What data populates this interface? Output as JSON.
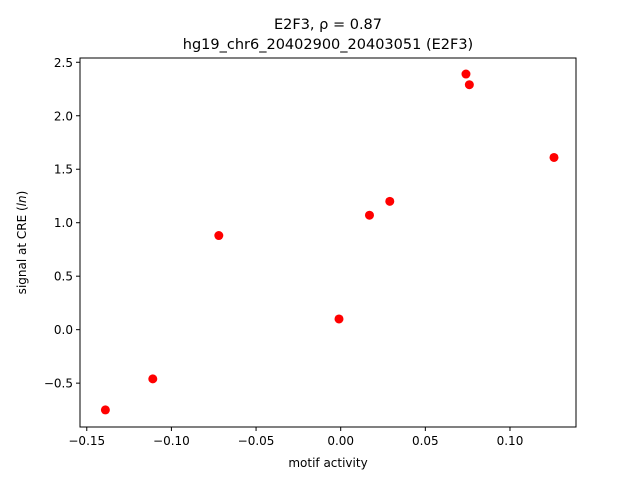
{
  "chart_data": {
    "type": "scatter",
    "title_line1": "E2F3, ρ = 0.87",
    "title_line2": "hg19_chr6_20402900_20403051 (E2F3)",
    "xlabel": "motif activity",
    "ylabel": "signal at CRE (",
    "ylabel_italic": "ln",
    "ylabel_suffix": ")",
    "xlim": [
      -0.154,
      0.139
    ],
    "ylim": [
      -0.91,
      2.54
    ],
    "xticks": [
      {
        "value": -0.15,
        "label": "−0.15"
      },
      {
        "value": -0.1,
        "label": "−0.10"
      },
      {
        "value": -0.05,
        "label": "−0.05"
      },
      {
        "value": 0.0,
        "label": "0.00"
      },
      {
        "value": 0.05,
        "label": "0.05"
      },
      {
        "value": 0.1,
        "label": "0.10"
      }
    ],
    "yticks": [
      {
        "value": -0.5,
        "label": "−0.5"
      },
      {
        "value": 0.0,
        "label": "0.0"
      },
      {
        "value": 0.5,
        "label": "0.5"
      },
      {
        "value": 1.0,
        "label": "1.0"
      },
      {
        "value": 1.5,
        "label": "1.5"
      },
      {
        "value": 2.0,
        "label": "2.0"
      },
      {
        "value": 2.5,
        "label": "2.5"
      }
    ],
    "grid": false,
    "marker_color": "#ff0000",
    "points": [
      {
        "x": -0.139,
        "y": -0.75
      },
      {
        "x": -0.111,
        "y": -0.46
      },
      {
        "x": -0.072,
        "y": 0.88
      },
      {
        "x": -0.001,
        "y": 0.1
      },
      {
        "x": 0.017,
        "y": 1.07
      },
      {
        "x": 0.029,
        "y": 1.2
      },
      {
        "x": 0.074,
        "y": 2.39
      },
      {
        "x": 0.076,
        "y": 2.29
      },
      {
        "x": 0.126,
        "y": 1.61
      }
    ]
  }
}
